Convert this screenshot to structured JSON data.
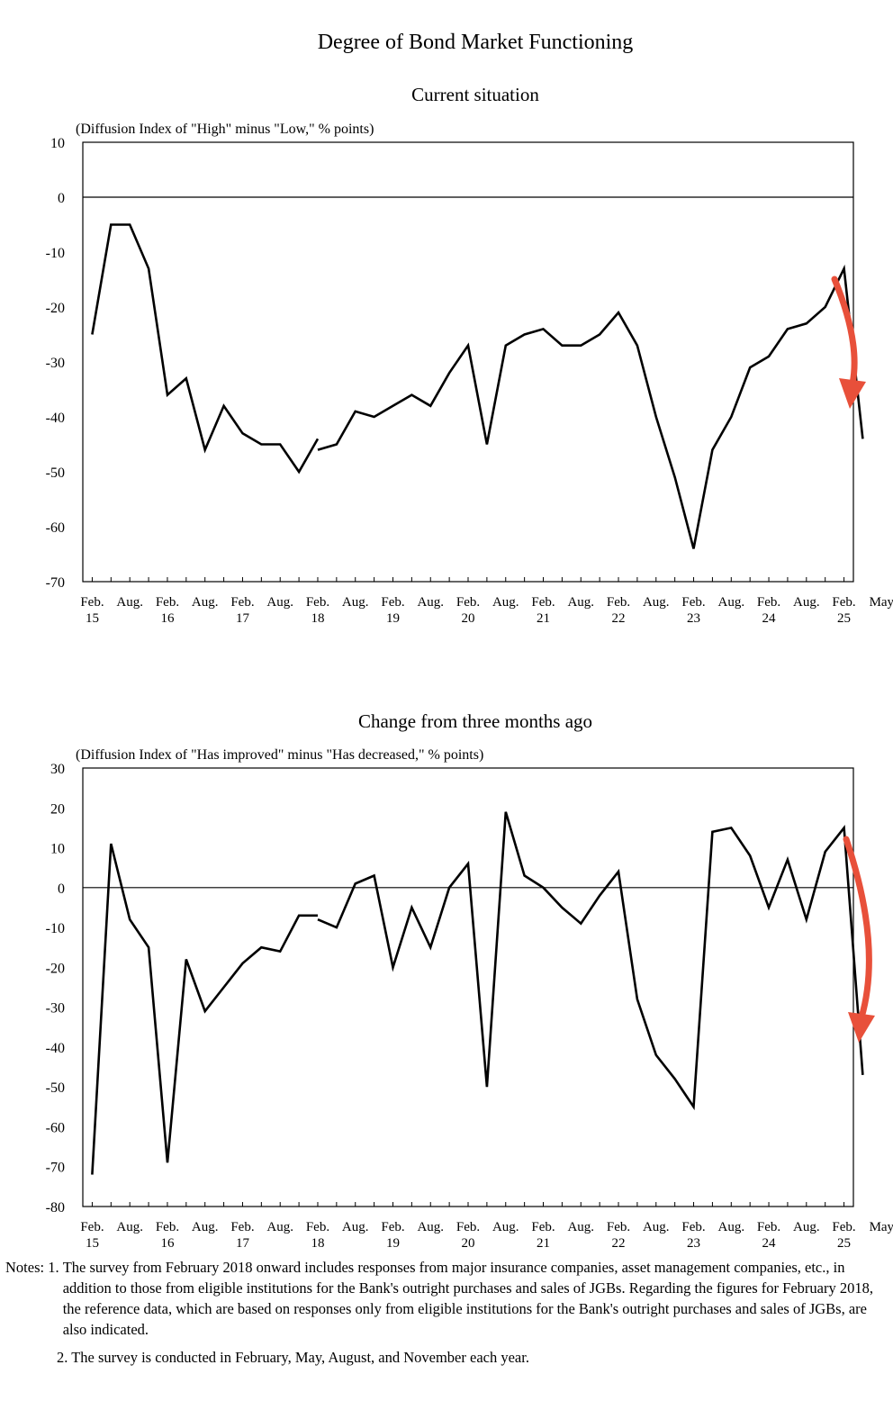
{
  "main_title": "Degree of Bond Market Functioning",
  "chart_data": [
    {
      "type": "line",
      "title": "Current situation",
      "ylabel": "(Diffusion Index of \"High\" minus \"Low,\" % points)",
      "ylim": [
        -70,
        10
      ],
      "yticks": [
        "10",
        "0",
        "-10",
        "-20",
        "-30",
        "-40",
        "-50",
        "-60",
        "-70"
      ],
      "xtick_labels": [
        {
          "top": "Feb.",
          "bottom": "15"
        },
        {
          "top": "Aug.",
          "bottom": ""
        },
        {
          "top": "Feb.",
          "bottom": "16"
        },
        {
          "top": "Aug.",
          "bottom": ""
        },
        {
          "top": "Feb.",
          "bottom": "17"
        },
        {
          "top": "Aug.",
          "bottom": ""
        },
        {
          "top": "Feb.",
          "bottom": "18"
        },
        {
          "top": "Aug.",
          "bottom": ""
        },
        {
          "top": "Feb.",
          "bottom": "19"
        },
        {
          "top": "Aug.",
          "bottom": ""
        },
        {
          "top": "Feb.",
          "bottom": "20"
        },
        {
          "top": "Aug.",
          "bottom": ""
        },
        {
          "top": "Feb.",
          "bottom": "21"
        },
        {
          "top": "Aug.",
          "bottom": ""
        },
        {
          "top": "Feb.",
          "bottom": "22"
        },
        {
          "top": "Aug.",
          "bottom": ""
        },
        {
          "top": "Feb.",
          "bottom": "23"
        },
        {
          "top": "Aug.",
          "bottom": ""
        },
        {
          "top": "Feb.",
          "bottom": "24"
        },
        {
          "top": "Aug.",
          "bottom": ""
        },
        {
          "top": "Feb.",
          "bottom": "25"
        },
        {
          "top": "May",
          "bottom": ""
        }
      ],
      "zero_line": true,
      "grid": false,
      "series": [
        {
          "color": "#000000",
          "points": [
            [
              "Feb. 2015",
              -25
            ],
            [
              "May 2015",
              -5
            ],
            [
              "Aug. 2015",
              -5
            ],
            [
              "Nov. 2015",
              -13
            ],
            [
              "Feb. 2016",
              -36
            ],
            [
              "May 2016",
              -33
            ],
            [
              "Aug. 2016",
              -46
            ],
            [
              "Nov. 2016",
              -38
            ],
            [
              "Feb. 2017",
              -43
            ],
            [
              "May 2017",
              -45
            ],
            [
              "Aug. 2017",
              -45
            ],
            [
              "Nov. 2017",
              -50
            ],
            [
              "Feb. 2018",
              -44
            ]
          ]
        },
        {
          "color": "#000000",
          "points": [
            [
              "Feb. 2018",
              -46
            ],
            [
              "May 2018",
              -45
            ],
            [
              "Aug. 2018",
              -39
            ],
            [
              "Nov. 2018",
              -40
            ],
            [
              "Feb. 2019",
              -38
            ],
            [
              "May 2019",
              -36
            ],
            [
              "Aug. 2019",
              -38
            ],
            [
              "Nov. 2019",
              -32
            ],
            [
              "Feb. 2020",
              -27
            ],
            [
              "May 2020",
              -45
            ],
            [
              "Aug. 2020",
              -27
            ],
            [
              "Nov. 2020",
              -25
            ],
            [
              "Feb. 2021",
              -24
            ],
            [
              "May 2021",
              -27
            ],
            [
              "Aug. 2021",
              -27
            ],
            [
              "Nov. 2021",
              -25
            ],
            [
              "Feb. 2022",
              -21
            ],
            [
              "May 2022",
              -27
            ],
            [
              "Aug. 2022",
              -40
            ],
            [
              "Nov. 2022",
              -51
            ],
            [
              "Feb. 2023",
              -64
            ],
            [
              "May 2023",
              -46
            ],
            [
              "Aug. 2023",
              -40
            ],
            [
              "Nov. 2023",
              -31
            ],
            [
              "Feb. 2024",
              -29
            ],
            [
              "May 2024",
              -24
            ],
            [
              "Aug. 2024",
              -23
            ],
            [
              "Nov. 2024",
              -20
            ],
            [
              "Feb. 2025",
              -13
            ],
            [
              "May 2025",
              -44
            ]
          ]
        }
      ],
      "arrow_color": "#e8503a"
    },
    {
      "type": "line",
      "title": "Change from three months ago",
      "ylabel": "(Diffusion Index of \"Has improved\" minus \"Has decreased,\" % points)",
      "ylim": [
        -80,
        30
      ],
      "yticks": [
        "30",
        "20",
        "10",
        "0",
        "-10",
        "-20",
        "-30",
        "-40",
        "-50",
        "-60",
        "-70",
        "-80"
      ],
      "xtick_labels": [
        {
          "top": "Feb.",
          "bottom": "15"
        },
        {
          "top": "Aug.",
          "bottom": ""
        },
        {
          "top": "Feb.",
          "bottom": "16"
        },
        {
          "top": "Aug.",
          "bottom": ""
        },
        {
          "top": "Feb.",
          "bottom": "17"
        },
        {
          "top": "Aug.",
          "bottom": ""
        },
        {
          "top": "Feb.",
          "bottom": "18"
        },
        {
          "top": "Aug.",
          "bottom": ""
        },
        {
          "top": "Feb.",
          "bottom": "19"
        },
        {
          "top": "Aug.",
          "bottom": ""
        },
        {
          "top": "Feb.",
          "bottom": "20"
        },
        {
          "top": "Aug.",
          "bottom": ""
        },
        {
          "top": "Feb.",
          "bottom": "21"
        },
        {
          "top": "Aug.",
          "bottom": ""
        },
        {
          "top": "Feb.",
          "bottom": "22"
        },
        {
          "top": "Aug.",
          "bottom": ""
        },
        {
          "top": "Feb.",
          "bottom": "23"
        },
        {
          "top": "Aug.",
          "bottom": ""
        },
        {
          "top": "Feb.",
          "bottom": "24"
        },
        {
          "top": "Aug.",
          "bottom": ""
        },
        {
          "top": "Feb.",
          "bottom": "25"
        },
        {
          "top": "May",
          "bottom": ""
        }
      ],
      "zero_line": true,
      "grid": false,
      "series": [
        {
          "color": "#000000",
          "points": [
            [
              "Feb. 2015",
              -72
            ],
            [
              "May 2015",
              11
            ],
            [
              "Aug. 2015",
              -8
            ],
            [
              "Nov. 2015",
              -15
            ],
            [
              "Feb. 2016",
              -69
            ],
            [
              "May 2016",
              -18
            ],
            [
              "Aug. 2016",
              -31
            ],
            [
              "Nov. 2016",
              -25
            ],
            [
              "Feb. 2017",
              -19
            ],
            [
              "May 2017",
              -15
            ],
            [
              "Aug. 2017",
              -16
            ],
            [
              "Nov. 2017",
              -7
            ],
            [
              "Feb. 2018",
              -7
            ]
          ]
        },
        {
          "color": "#000000",
          "points": [
            [
              "Feb. 2018",
              -8
            ],
            [
              "May 2018",
              -10
            ],
            [
              "Aug. 2018",
              1
            ],
            [
              "Nov. 2018",
              3
            ],
            [
              "Feb. 2019",
              -20
            ],
            [
              "May 2019",
              -5
            ],
            [
              "Aug. 2019",
              -15
            ],
            [
              "Nov. 2019",
              0
            ],
            [
              "Feb. 2020",
              6
            ],
            [
              "May 2020",
              -50
            ],
            [
              "Aug. 2020",
              19
            ],
            [
              "Nov. 2020",
              3
            ],
            [
              "Feb. 2021",
              0
            ],
            [
              "May 2021",
              -5
            ],
            [
              "Aug. 2021",
              -9
            ],
            [
              "Nov. 2021",
              -2
            ],
            [
              "Feb. 2022",
              4
            ],
            [
              "May 2022",
              -28
            ],
            [
              "Aug. 2022",
              -42
            ],
            [
              "Nov. 2022",
              -48
            ],
            [
              "Feb. 2023",
              -55
            ],
            [
              "May 2023",
              14
            ],
            [
              "Aug. 2023",
              15
            ],
            [
              "Nov. 2023",
              8
            ],
            [
              "Feb. 2024",
              -5
            ],
            [
              "May 2024",
              7
            ],
            [
              "Aug. 2024",
              -8
            ],
            [
              "Nov. 2024",
              9
            ],
            [
              "Feb. 2025",
              15
            ],
            [
              "May 2025",
              -47
            ]
          ]
        }
      ],
      "arrow_color": "#e8503a"
    }
  ],
  "notes": {
    "note1_prefix": "Notes: 1. ",
    "note1_text": "The survey from February 2018 onward includes responses from major insurance companies, asset management companies, etc., in addition to those from eligible institutions for the Bank's outright purchases and sales of JGBs. Regarding the figures for February 2018, the reference data, which are based on responses only from eligible institutions for the Bank's outright purchases and sales of JGBs, are also indicated.",
    "note2_text": "2. The survey is conducted in February, May, August, and November each year."
  }
}
